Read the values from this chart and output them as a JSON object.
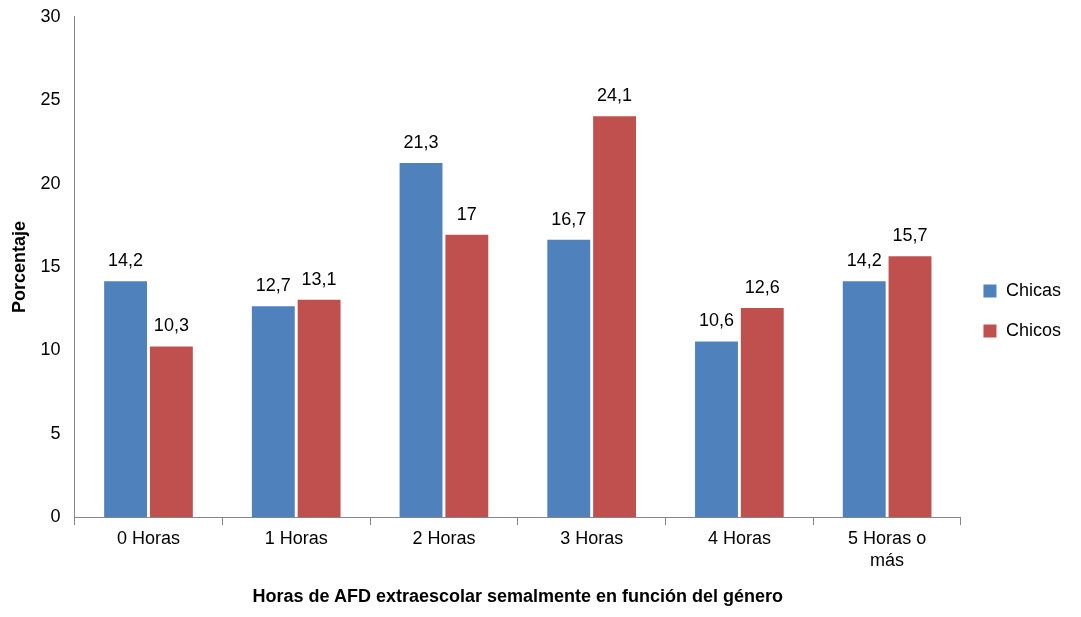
{
  "chart_data": {
    "type": "bar",
    "xlabel": "Horas de AFD extraescolar semalmente en función del género",
    "ylabel": "Porcentaje",
    "categories": [
      "0 Horas",
      "1 Horas",
      "2 Horas",
      "3 Horas",
      "4 Horas",
      "5 Horas o más"
    ],
    "series": [
      {
        "name": "Chicas",
        "color": "#4f81bd",
        "values": [
          14.2,
          12.7,
          21.3,
          16.7,
          10.6,
          14.2
        ],
        "value_labels": [
          "14,2",
          "12,7",
          "21,3",
          "16,7",
          "10,6",
          "14,2"
        ]
      },
      {
        "name": "Chicos",
        "color": "#c0504d",
        "values": [
          10.3,
          13.1,
          17,
          24.1,
          12.6,
          15.7
        ],
        "value_labels": [
          "10,3",
          "13,1",
          "17",
          "24,1",
          "12,6",
          "15,7"
        ]
      }
    ],
    "ylim": [
      0,
      30
    ],
    "yticks": [
      0,
      5,
      10,
      15,
      20,
      25,
      30
    ],
    "legend": "right"
  }
}
